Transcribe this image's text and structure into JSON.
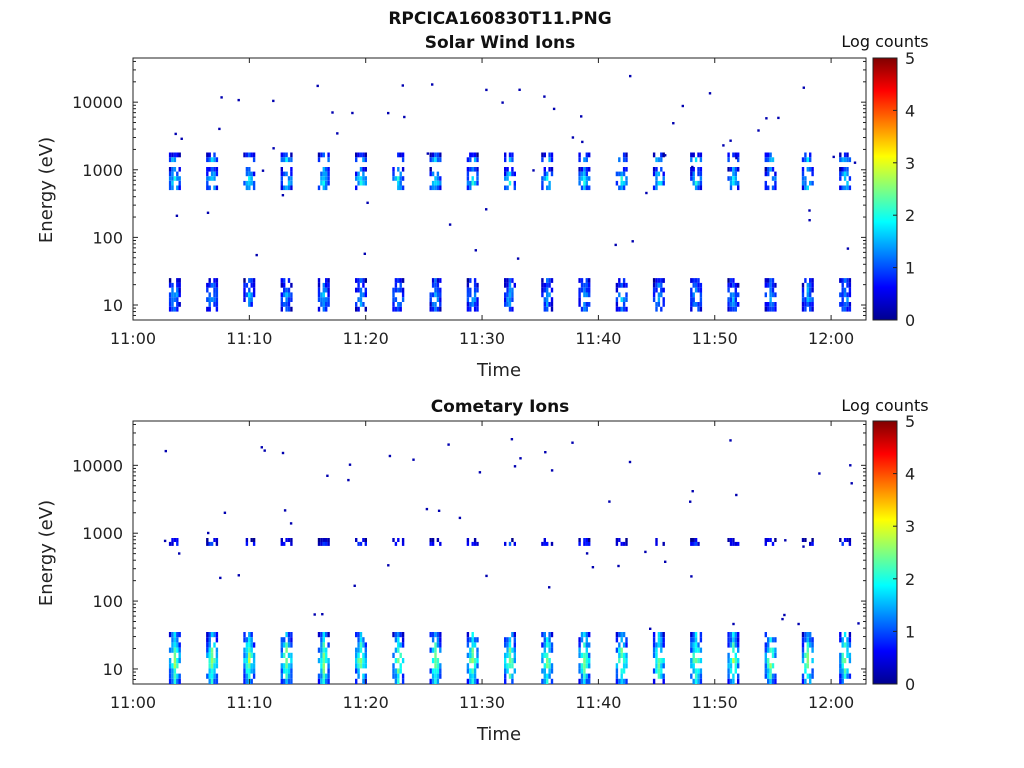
{
  "figure_title": "RPCICA160830T11.PNG",
  "chart_data": [
    {
      "type": "heatmap",
      "title": "Solar Wind Ions",
      "xlabel": "Time",
      "ylabel": "Energy (eV)",
      "y_scale": "log",
      "ylim": [
        6,
        45000
      ],
      "x_ticks": [
        "11:00",
        "11:10",
        "11:20",
        "11:30",
        "11:40",
        "11:50",
        "12:00"
      ],
      "y_ticks": [
        "10",
        "100",
        "1000",
        "10000"
      ],
      "colorbar": {
        "label": "Log counts",
        "range": [
          0,
          5
        ],
        "ticks": [
          "0",
          "1",
          "2",
          "3",
          "4",
          "5"
        ],
        "colormap": "jet"
      },
      "x_range": [
        "11:00",
        "12:03"
      ],
      "pattern": "periodic scans every ~3.2 minutes from 11:03 to 12:02",
      "scan_minutes": [
        3.6,
        6.8,
        10.0,
        13.2,
        16.4,
        19.6,
        22.8,
        26.0,
        29.2,
        32.4,
        35.6,
        38.8,
        42.0,
        45.2,
        48.4,
        51.6,
        54.8,
        58.0,
        61.2
      ],
      "bands": [
        {
          "energy_low": 500,
          "energy_high": 1100,
          "log_counts_peak": 2.0,
          "label": "solar wind ~700 eV"
        },
        {
          "energy_low": 1300,
          "energy_high": 1800,
          "log_counts_peak": 1.6,
          "label": "alpha ~1500 eV"
        },
        {
          "energy_low": 8,
          "energy_high": 25,
          "log_counts_peak": 1.5,
          "label": "low energy ~10-20 eV"
        }
      ]
    },
    {
      "type": "heatmap",
      "title": "Cometary Ions",
      "xlabel": "Time",
      "ylabel": "Energy (eV)",
      "y_scale": "log",
      "ylim": [
        6,
        45000
      ],
      "x_ticks": [
        "11:00",
        "11:10",
        "11:20",
        "11:30",
        "11:40",
        "11:50",
        "12:00"
      ],
      "y_ticks": [
        "10",
        "100",
        "1000",
        "10000"
      ],
      "colorbar": {
        "label": "Log counts",
        "range": [
          0,
          5
        ],
        "ticks": [
          "0",
          "1",
          "2",
          "3",
          "4",
          "5"
        ],
        "colormap": "jet"
      },
      "x_range": [
        "11:00",
        "12:03"
      ],
      "pattern": "periodic scans every ~3.2 minutes from 11:03 to 12:02",
      "scan_minutes": [
        3.6,
        6.8,
        10.0,
        13.2,
        16.4,
        19.6,
        22.8,
        26.0,
        29.2,
        32.4,
        35.6,
        38.8,
        42.0,
        45.2,
        48.4,
        51.6,
        54.8,
        58.0,
        61.2
      ],
      "bands": [
        {
          "energy_low": 6,
          "energy_high": 35,
          "log_counts_peak": 2.6,
          "label": "cometary ions ~10-30 eV"
        },
        {
          "energy_low": 650,
          "energy_high": 850,
          "log_counts_peak": 0.8,
          "label": "weak ~750 eV"
        }
      ]
    }
  ]
}
